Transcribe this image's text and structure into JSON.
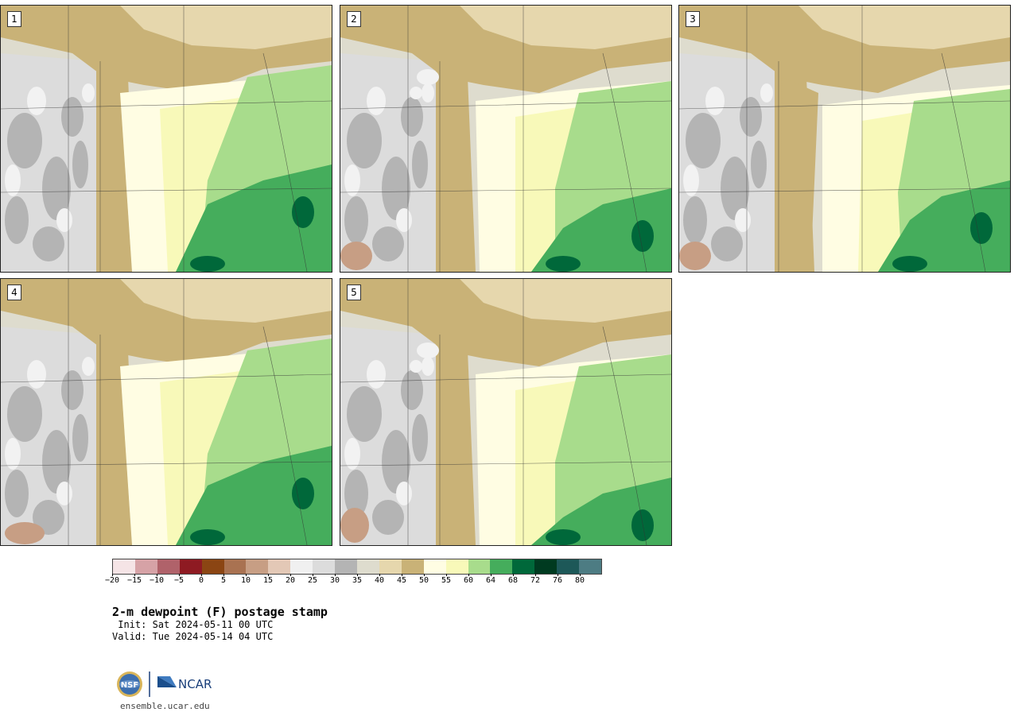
{
  "panels": [
    {
      "label": "1",
      "variant": 1
    },
    {
      "label": "2",
      "variant": 2
    },
    {
      "label": "3",
      "variant": 3
    },
    {
      "label": "4",
      "variant": 4
    },
    {
      "label": "5",
      "variant": 5
    }
  ],
  "colorbar": {
    "colors": [
      "#f5e4e6",
      "#d6a2a6",
      "#b0626a",
      "#8e1a22",
      "#8b4513",
      "#a97251",
      "#c79e84",
      "#e3c8b6",
      "#f0f0f0",
      "#dcdcdc",
      "#b4b4b4",
      "#dedcce",
      "#e6d7ad",
      "#c9b277",
      "#fffde3",
      "#f8f9b9",
      "#a8dc8c",
      "#45ad5c",
      "#00683a",
      "#003a20",
      "#1d5858",
      "#4d7c83"
    ],
    "ticks": [
      "−20",
      "−15",
      "−10",
      "−5",
      "0",
      "5",
      "10",
      "15",
      "20",
      "25",
      "30",
      "35",
      "40",
      "45",
      "50",
      "55",
      "60",
      "64",
      "68",
      "72",
      "76",
      "80"
    ]
  },
  "title": "2-m dewpoint (F) postage stamp",
  "init": " Init: Sat 2024-05-11 00 UTC",
  "valid": "Valid: Tue 2024-05-14 04 UTC",
  "logo": {
    "nsf_text": "NSF",
    "ncar_text": "NCAR"
  },
  "footer_url": "ensemble.ucar.edu"
}
